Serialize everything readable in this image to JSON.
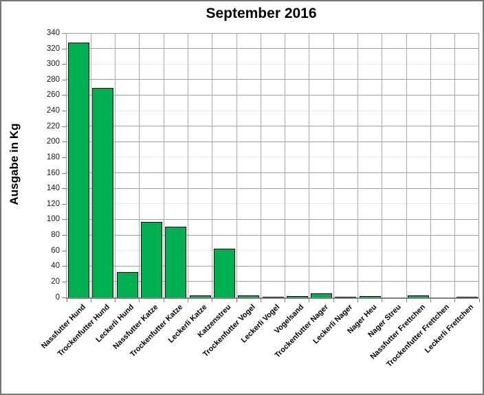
{
  "chart_data": {
    "type": "bar",
    "title": "September 2016",
    "xlabel": "",
    "ylabel": "Ausgabe in Kg",
    "categories": [
      "Nassfutter Hund",
      "Trockenfutter Hund",
      "Leckerli Hund",
      "Nassfutter Katze",
      "Trockenfutter Katze",
      "Leckerli Katze",
      "Katzenstreu",
      "Trockenfutter Vogel",
      "Leckerli Vogel",
      "Vogelsand",
      "Trockenfutter Nager",
      "Leckerli Nager",
      "Nager Heu",
      "Nager Streu",
      "Nassfutter Frettchen",
      "Trockenfutter Frettchen",
      "Leckerli Frettchen"
    ],
    "values": [
      328,
      270,
      33,
      97,
      91,
      3,
      63,
      3,
      1,
      1.5,
      5,
      1,
      2,
      0,
      3,
      0,
      0.5
    ],
    "ylim": [
      0,
      340
    ],
    "yticks": [
      0,
      20,
      40,
      60,
      80,
      100,
      120,
      140,
      160,
      180,
      200,
      220,
      240,
      260,
      280,
      300,
      320,
      340
    ],
    "xtick_rotation": 45,
    "grid": true,
    "legend": false,
    "bar_color": "#00b050",
    "bar_border_color": "#0a0a0a",
    "gridline_color": "#a0a0a0",
    "gridline_light_color": "#e9e9e9",
    "axis_color": "#808080"
  }
}
